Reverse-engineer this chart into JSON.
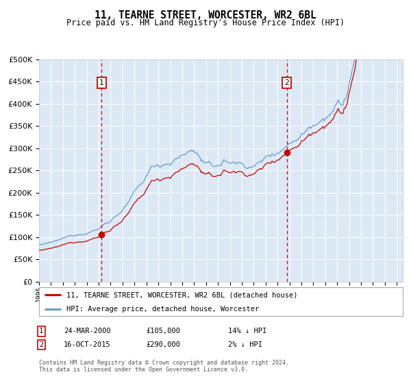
{
  "title": "11, TEARNE STREET, WORCESTER, WR2 6BL",
  "subtitle": "Price paid vs. HM Land Registry's House Price Index (HPI)",
  "legend_line1": "11, TEARNE STREET, WORCESTER, WR2 6BL (detached house)",
  "legend_line2": "HPI: Average price, detached house, Worcester",
  "sale1_date": "24-MAR-2000",
  "sale1_price": "£105,000",
  "sale1_hpi": "14% ↓ HPI",
  "sale2_date": "16-OCT-2015",
  "sale2_price": "£290,000",
  "sale2_hpi": "2% ↓ HPI",
  "footer_line1": "Contains HM Land Registry data © Crown copyright and database right 2024.",
  "footer_line2": "This data is licensed under the Open Government Licence v3.0.",
  "bg_color": "#dce9f5",
  "grid_color": "#ffffff",
  "red_line_color": "#cc0000",
  "blue_line_color": "#6699cc",
  "marker_color": "#cc0000",
  "dashed_line_color": "#cc0000",
  "ylim_min": 0,
  "ylim_max": 500000,
  "sale1_year": 2000.23,
  "sale2_year": 2015.79,
  "year_start": 1995,
  "year_end": 2025
}
